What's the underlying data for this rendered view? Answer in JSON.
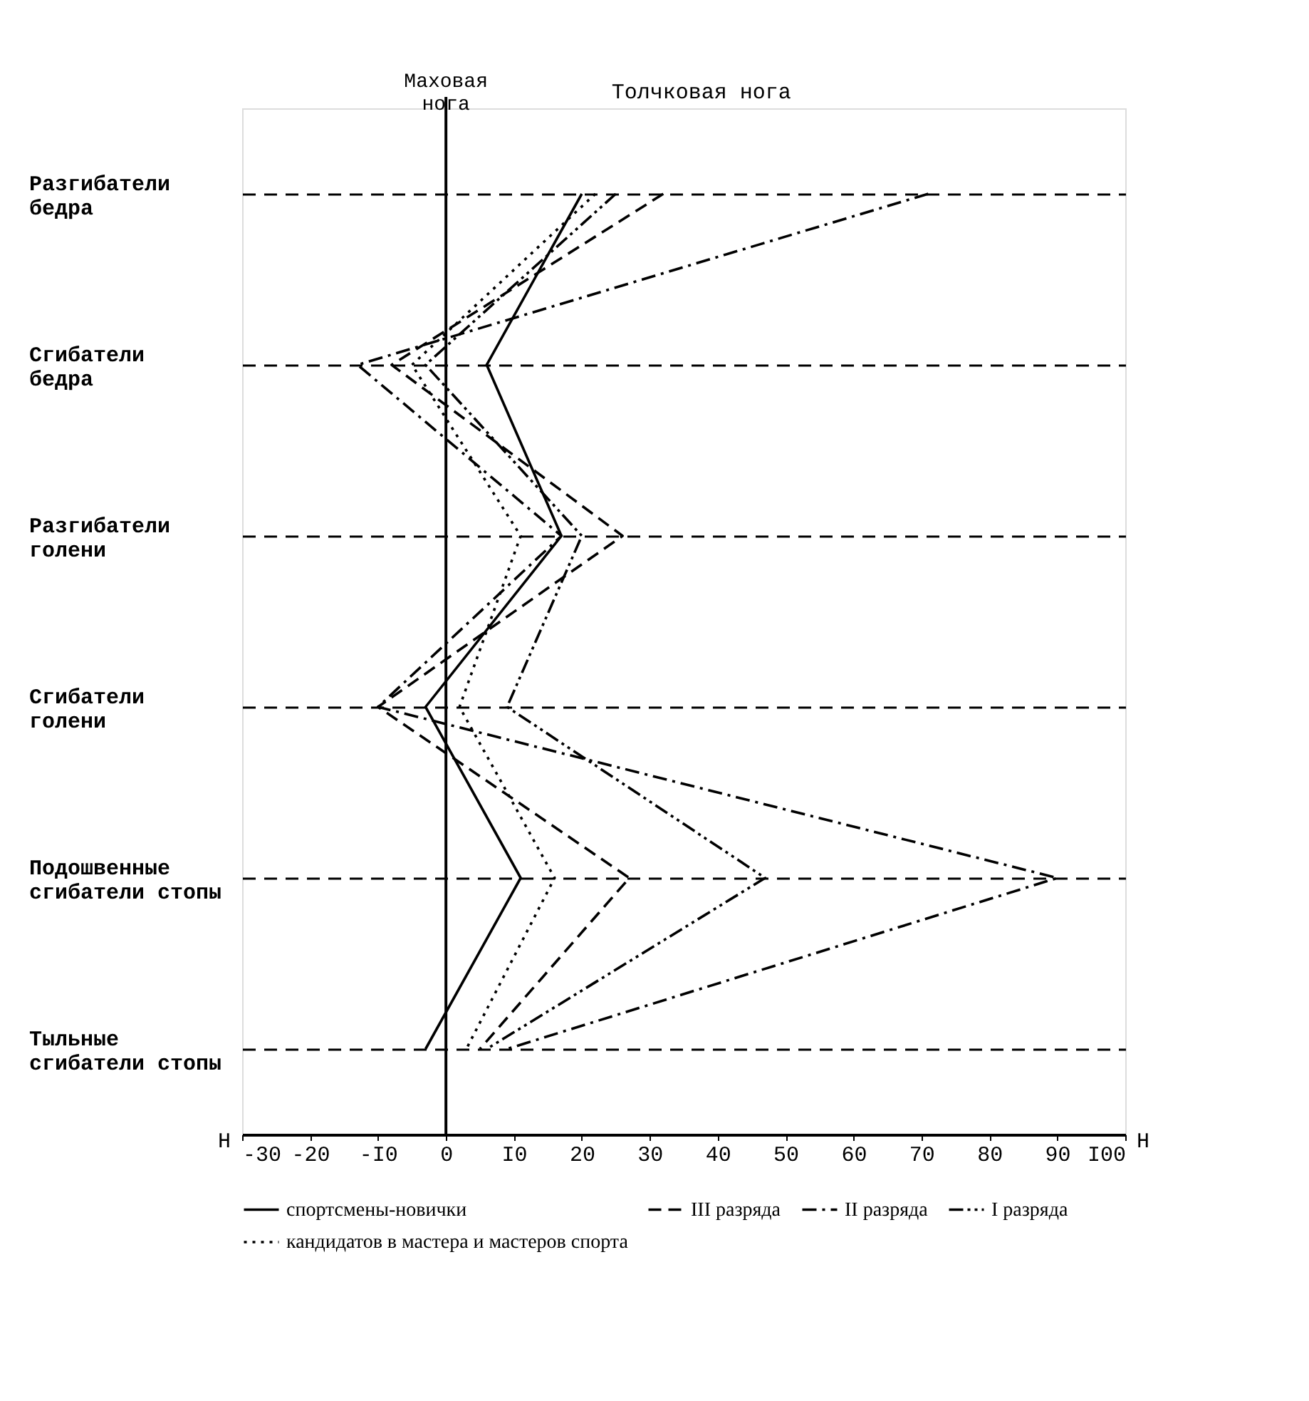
{
  "chart_data": {
    "type": "line",
    "orientation": "horizontal",
    "categories": [
      "Разгибатели\nбедра",
      "Сгибатели\nбедра",
      "Разгибатели\nголени",
      "Сгибатели\nголени",
      "Подошвенные\nсгибатели стопы",
      "Тыльные\nсгибатели стопы"
    ],
    "series": [
      {
        "name": "спортсмены-новички",
        "color": "#000000",
        "line_style": "solid",
        "values": [
          20,
          6,
          17,
          -3,
          11,
          -3
        ]
      },
      {
        "name": "III разряда",
        "color": "#000000",
        "line_style": "dashed",
        "values": [
          32,
          -8,
          26,
          -10,
          27,
          5
        ]
      },
      {
        "name": "II разряда",
        "color": "#000000",
        "line_style": "dashdot",
        "values": [
          71,
          -13,
          17,
          -10,
          90,
          9
        ]
      },
      {
        "name": "I разряда",
        "color": "#000000",
        "line_style": "dashdotdot",
        "values": [
          25,
          -3,
          20,
          9,
          47,
          6
        ]
      },
      {
        "name": "кандидатов в мастера и мастеров спорта",
        "color": "#000000",
        "line_style": "dotted",
        "values": [
          22,
          -5,
          11,
          2,
          16,
          3
        ]
      }
    ],
    "xlim": [
      -30,
      100
    ],
    "xticks": [
      -30,
      -20,
      {
        "value": -10,
        "label": "-I0"
      },
      0,
      {
        "value": 10,
        "label": "I0"
      },
      20,
      30,
      40,
      50,
      60,
      70,
      80,
      90,
      {
        "value": 100,
        "label": "I00"
      }
    ],
    "xlabel": "Н",
    "ref_lines": [
      {
        "axis": "x",
        "value": 0,
        "label": "Маховая\nнога",
        "line_style": "solid",
        "color": "#000000"
      }
    ],
    "annotations": [
      "Толчковая нога",
      "Н"
    ],
    "grid": "y",
    "legend": "bottom"
  }
}
